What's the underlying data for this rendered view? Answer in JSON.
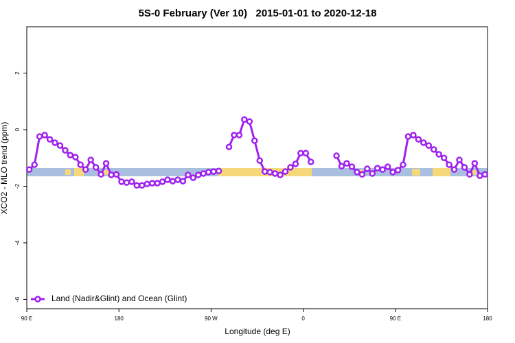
{
  "chart_data": {
    "type": "line",
    "title": "5S-0 February (Ver 10)   2015-01-01 to 2020-12-18",
    "x_label": "Longitude (deg E)",
    "y_label": "XCO2 - MLO trend (ppm)",
    "x": [
      92.5,
      97.5,
      102.5,
      107.5,
      112.5,
      117.5,
      122.5,
      127.5,
      132.5,
      137.5,
      142.5,
      147.5,
      152.5,
      157.5,
      162.5,
      167.5,
      172.5,
      177.5,
      182.5,
      187.5,
      192.5,
      197.5,
      202.5,
      207.5,
      212.5,
      217.5,
      222.5,
      227.5,
      232.5,
      237.5,
      242.5,
      247.5,
      252.5,
      257.5,
      262.5,
      267.5,
      272.5,
      277.5,
      282.5,
      287.5,
      292.5,
      297.5,
      302.5,
      307.5,
      312.5,
      317.5,
      322.5,
      327.5,
      332.5,
      337.5,
      342.5,
      347.5,
      352.5,
      357.5,
      362.5,
      367.5,
      372.5,
      377.5,
      382.5,
      387.5,
      392.5,
      397.5,
      402.5,
      407.5,
      412.5,
      417.5,
      422.5,
      427.5,
      432.5,
      437.5,
      442.5,
      447.5,
      452.5,
      457.5,
      462.5,
      467.5,
      472.5,
      477.5,
      482.5,
      487.5,
      492.5,
      497.5,
      502.5,
      507.5,
      512.5,
      517.5,
      522.5,
      527.5,
      532.5,
      537.5
    ],
    "series": [
      {
        "name": "Land (Nadir&Glint) and Ocean (Glint)",
        "color": "#a020f0",
        "values": [
          -1.41,
          -1.24,
          -0.24,
          -0.19,
          -0.34,
          -0.46,
          -0.56,
          -0.73,
          -0.9,
          -0.97,
          -1.24,
          -1.41,
          -1.07,
          -1.33,
          -1.58,
          -1.19,
          -1.6,
          -1.58,
          -1.84,
          -1.87,
          -1.84,
          -1.97,
          -1.97,
          -1.92,
          -1.89,
          -1.89,
          -1.84,
          -1.77,
          -1.82,
          -1.77,
          -1.82,
          -1.6,
          -1.7,
          -1.6,
          -1.55,
          -1.5,
          -1.48,
          -1.46,
          null,
          -0.61,
          -0.19,
          -0.19,
          0.36,
          0.29,
          -0.39,
          -1.09,
          -1.48,
          -1.5,
          -1.55,
          -1.6,
          -1.48,
          -1.33,
          -1.21,
          -0.83,
          -0.83,
          -1.14,
          null,
          null,
          null,
          null,
          -0.92,
          -1.29,
          -1.19,
          -1.31,
          -1.5,
          -1.58,
          -1.38,
          -1.55,
          -1.36,
          -1.41,
          -1.31,
          -1.5,
          -1.43,
          -1.24,
          -0.24,
          -0.19,
          -0.34,
          -0.46,
          -0.56,
          -0.7,
          -0.87,
          -1.0,
          -1.24,
          -1.41,
          -1.07,
          -1.33,
          -1.58,
          -1.19,
          -1.63,
          -1.58
        ]
      }
    ],
    "xlim": [
      90,
      540
    ],
    "xticks": [
      {
        "value": 90,
        "label": "90 E"
      },
      180,
      {
        "value": 270,
        "label": "90 W"
      },
      {
        "value": 360,
        "label": "0"
      },
      {
        "value": 450,
        "label": "90 E"
      },
      {
        "value": 540,
        "label": "180"
      }
    ],
    "ylim": [
      -6.33,
      3.64
    ],
    "yticks": [
      -6,
      -4,
      -2,
      0,
      2
    ],
    "legend": "bottom-left"
  }
}
